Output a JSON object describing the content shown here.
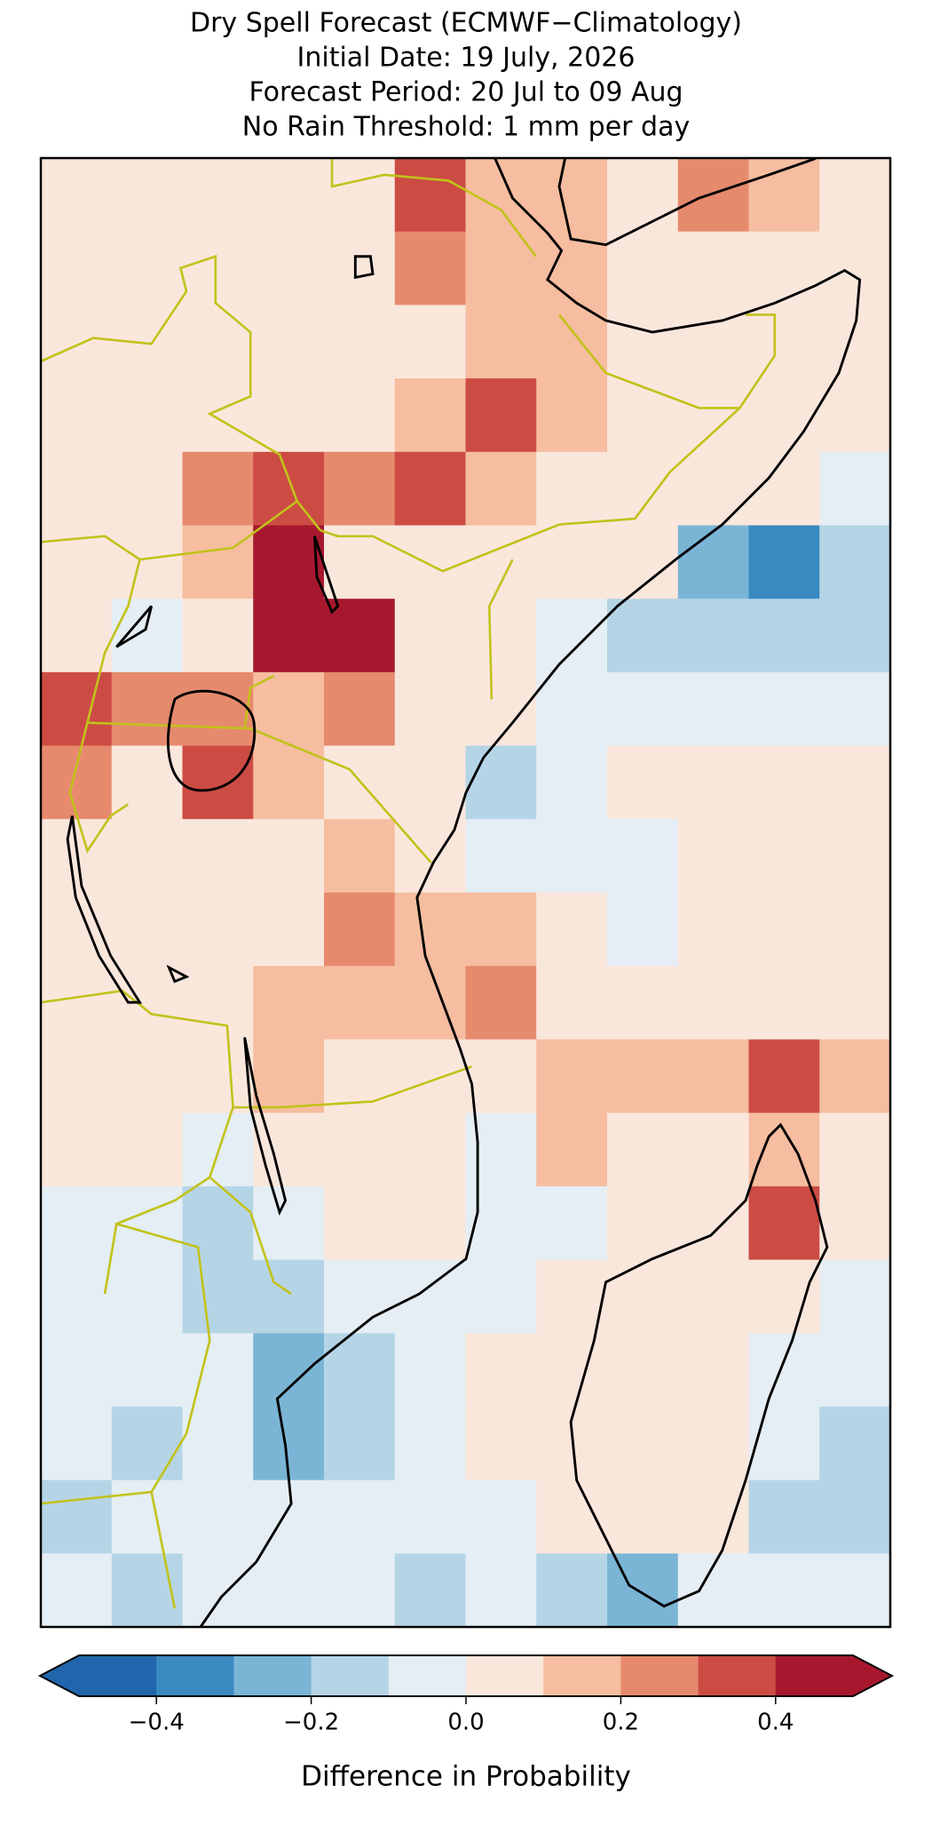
{
  "chart_data": {
    "type": "heatmap",
    "title": [
      "Dry Spell Forecast (ECMWF−Climatology)",
      "Initial Date: 19 July, 2026",
      "Forecast Period: 20 Jul to 09 Aug",
      "No Rain Threshold: 1 mm per day"
    ],
    "colorbar_label": "Difference in Probability",
    "levels": [
      -0.5,
      -0.4,
      -0.3,
      -0.2,
      -0.1,
      0,
      0.1,
      0.2,
      0.3,
      0.4,
      0.5
    ],
    "colors": [
      "#2166ac",
      "#3a89c1",
      "#7ab5d6",
      "#b5d5e7",
      "#e4eef4",
      "#fae7dc",
      "#f6bda0",
      "#e68a6e",
      "#cc4c44",
      "#a7182f"
    ],
    "extend": "both",
    "ticks": [
      {
        "value": -0.4,
        "label": "−0.4"
      },
      {
        "value": -0.2,
        "label": "−0.2"
      },
      {
        "value": 0,
        "label": "0.0"
      },
      0.2,
      0.4
    ],
    "values": [
      [
        0.05,
        0.05,
        0.05,
        0.05,
        0.05,
        0.35,
        0.15,
        0.15,
        0.05,
        0.25,
        0.15,
        0.05
      ],
      [
        0.05,
        0.05,
        0.05,
        0.05,
        0.05,
        0.25,
        0.15,
        0.15,
        0.05,
        0.05,
        0.05,
        0.05
      ],
      [
        0.05,
        0.05,
        0.05,
        0.05,
        0.05,
        0.05,
        0.15,
        0.15,
        0.05,
        0.05,
        0.05,
        0.05
      ],
      [
        0.05,
        0.05,
        0.05,
        0.05,
        0.05,
        0.15,
        0.35,
        0.15,
        0.05,
        0.05,
        0.05,
        0.05
      ],
      [
        0.05,
        0.05,
        0.25,
        0.35,
        0.25,
        0.35,
        0.15,
        0.05,
        0.05,
        0.05,
        0.05,
        -0.05
      ],
      [
        0.05,
        0.05,
        0.15,
        0.45,
        0.05,
        0.05,
        0.05,
        0.05,
        0.05,
        -0.25,
        -0.35,
        -0.15
      ],
      [
        0.05,
        -0.05,
        0.05,
        0.45,
        0.45,
        0.05,
        0.05,
        -0.05,
        -0.15,
        -0.15,
        -0.15,
        -0.15
      ],
      [
        0.35,
        0.25,
        0.25,
        0.15,
        0.25,
        0.05,
        0.05,
        -0.05,
        -0.05,
        -0.05,
        -0.05,
        -0.05
      ],
      [
        0.25,
        0.05,
        0.35,
        0.15,
        0.05,
        0.05,
        -0.15,
        -0.05,
        0.05,
        0.05,
        0.05,
        0.05
      ],
      [
        0.05,
        0.05,
        0.05,
        0.05,
        0.15,
        0.05,
        -0.05,
        -0.05,
        -0.05,
        0.05,
        0.05,
        0.05
      ],
      [
        0.05,
        0.05,
        0.05,
        0.05,
        0.25,
        0.15,
        0.15,
        0.05,
        -0.05,
        0.05,
        0.05,
        0.05
      ],
      [
        0.05,
        0.05,
        0.05,
        0.15,
        0.15,
        0.15,
        0.25,
        0.05,
        0.05,
        0.05,
        0.05,
        0.05
      ],
      [
        0.05,
        0.05,
        0.05,
        0.15,
        0.05,
        0.05,
        0.05,
        0.15,
        0.15,
        0.15,
        0.35,
        0.15
      ],
      [
        0.05,
        0.05,
        -0.05,
        0.05,
        0.05,
        0.05,
        -0.05,
        0.15,
        0.05,
        0.05,
        0.15,
        0.05
      ],
      [
        -0.05,
        -0.05,
        -0.15,
        -0.05,
        0.05,
        0.05,
        -0.05,
        -0.05,
        0.05,
        0.05,
        0.35,
        0.05
      ],
      [
        -0.05,
        -0.05,
        -0.15,
        -0.15,
        -0.05,
        -0.05,
        -0.05,
        0.05,
        0.05,
        0.05,
        0.05,
        -0.05
      ],
      [
        -0.05,
        -0.05,
        -0.05,
        -0.25,
        -0.15,
        -0.05,
        0.05,
        0.05,
        0.05,
        0.05,
        -0.05,
        -0.05
      ],
      [
        -0.05,
        -0.15,
        -0.05,
        -0.25,
        -0.15,
        -0.05,
        0.05,
        0.05,
        0.05,
        0.05,
        -0.05,
        -0.15
      ],
      [
        -0.15,
        -0.05,
        -0.05,
        -0.05,
        -0.05,
        -0.05,
        -0.05,
        0.05,
        0.05,
        0.05,
        -0.15,
        -0.15
      ],
      [
        -0.05,
        -0.15,
        -0.05,
        -0.05,
        -0.05,
        -0.15,
        -0.05,
        -0.15,
        -0.25,
        -0.05,
        -0.05,
        -0.05
      ]
    ]
  }
}
